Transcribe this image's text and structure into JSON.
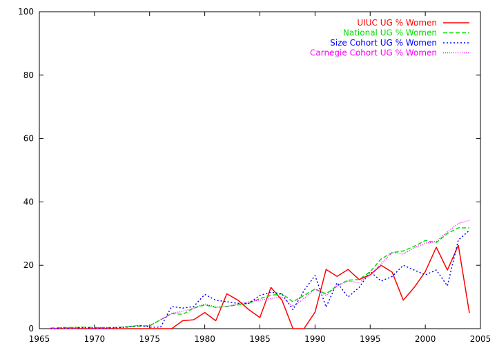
{
  "chart_data": {
    "type": "line",
    "title": "",
    "xlabel": "",
    "ylabel": "",
    "xlim": [
      1965,
      2005
    ],
    "ylim": [
      0,
      100
    ],
    "xticks": [
      1965,
      1970,
      1975,
      1980,
      1985,
      1990,
      1995,
      2000,
      2005
    ],
    "yticks": [
      0,
      20,
      40,
      60,
      80,
      100
    ],
    "grid": false,
    "legend_position": "top-right",
    "series": [
      {
        "name": "UIUC UG % Women",
        "color": "#ff0000",
        "dash": "solid",
        "x": [
          1966,
          1967,
          1968,
          1969,
          1970,
          1971,
          1972,
          1973,
          1974,
          1975,
          1976,
          1977,
          1978,
          1979,
          1980,
          1981,
          1982,
          1983,
          1984,
          1985,
          1986,
          1987,
          1988,
          1989,
          1990,
          1991,
          1992,
          1993,
          1994,
          1995,
          1996,
          1997,
          1998,
          1999,
          2000,
          2001,
          2002,
          2003,
          2004
        ],
        "y": [
          0,
          0,
          0,
          0,
          0,
          0,
          0,
          0,
          0,
          0,
          0,
          0,
          2.5,
          2.8,
          5.1,
          2.5,
          11,
          9,
          6,
          3.5,
          13,
          9,
          0,
          0,
          5.2,
          18.7,
          16.5,
          18.7,
          15.5,
          17,
          20,
          17.8,
          9,
          13,
          18,
          25.7,
          18.5,
          26.3,
          5
        ]
      },
      {
        "name": "National UG % Women",
        "color": "#00e000",
        "dash": "dashed",
        "x": [
          1966,
          1967,
          1968,
          1969,
          1970,
          1971,
          1972,
          1973,
          1974,
          1975,
          1976,
          1977,
          1978,
          1979,
          1980,
          1981,
          1982,
          1983,
          1984,
          1985,
          1986,
          1987,
          1988,
          1989,
          1990,
          1991,
          1992,
          1993,
          1994,
          1995,
          1996,
          1997,
          1998,
          1999,
          2000,
          2001,
          2002,
          2003,
          2004
        ],
        "y": [
          0.2,
          0.3,
          0.4,
          0.5,
          0.4,
          0.3,
          0.4,
          0.6,
          0.8,
          0.9,
          2.8,
          4.8,
          4.5,
          6.5,
          7.5,
          6.7,
          7,
          7.5,
          8,
          9.5,
          10.5,
          11,
          8.5,
          10.5,
          12.5,
          11,
          13.5,
          15.3,
          15.5,
          18,
          22,
          24,
          24.5,
          26,
          27.8,
          27.2,
          30,
          31.8,
          31.8
        ]
      },
      {
        "name": "Size Cohort UG % Women",
        "color": "#0000ff",
        "dash": "dotted",
        "x": [
          1966,
          1967,
          1968,
          1969,
          1970,
          1971,
          1972,
          1973,
          1974,
          1975,
          1976,
          1977,
          1978,
          1979,
          1980,
          1981,
          1982,
          1983,
          1984,
          1985,
          1986,
          1987,
          1988,
          1989,
          1990,
          1991,
          1992,
          1993,
          1994,
          1995,
          1996,
          1997,
          1998,
          1999,
          2000,
          2001,
          2002,
          2003,
          2004
        ],
        "y": [
          0,
          0.2,
          0.2,
          0.3,
          0.2,
          0.2,
          0.3,
          0.5,
          1,
          0.5,
          0.5,
          7,
          6.5,
          7,
          10.8,
          9,
          8.5,
          8,
          8,
          10.5,
          11.5,
          11,
          6,
          12,
          16.8,
          6.8,
          14.5,
          10,
          13,
          18,
          15,
          16.5,
          20,
          18.5,
          17,
          18.5,
          13.5,
          28,
          31
        ]
      },
      {
        "name": "Carnegie Cohort UG % Women",
        "color": "#ff00ff",
        "dash": "fine-dotted",
        "x": [
          1966,
          1967,
          1968,
          1969,
          1970,
          1971,
          1972,
          1973,
          1974,
          1975,
          1976,
          1977,
          1978,
          1979,
          1980,
          1981,
          1982,
          1983,
          1984,
          1985,
          1986,
          1987,
          1988,
          1989,
          1990,
          1991,
          1992,
          1993,
          1994,
          1995,
          1996,
          1997,
          1998,
          1999,
          2000,
          2001,
          2002,
          2003,
          2004
        ],
        "y": [
          0,
          0.2,
          0.2,
          0.3,
          0.3,
          0.3,
          0.4,
          0.6,
          1,
          1,
          2.8,
          4.8,
          5.5,
          6.5,
          7.8,
          6.8,
          7,
          7.8,
          8.5,
          9,
          9.5,
          10,
          7,
          9.5,
          12.5,
          10.5,
          13.5,
          15,
          14.5,
          17,
          20.5,
          24,
          23.5,
          25.5,
          27,
          27.5,
          30.5,
          33.2,
          34.2
        ]
      }
    ]
  }
}
